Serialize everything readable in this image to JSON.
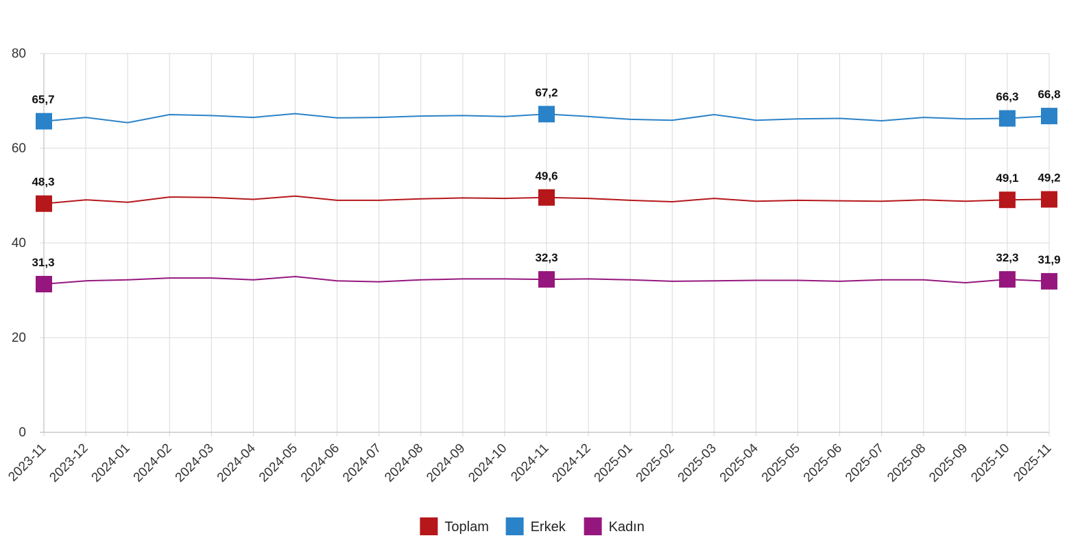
{
  "chart_data": {
    "type": "line",
    "title": "",
    "xlabel": "",
    "ylabel": "",
    "ylim": [
      0,
      80
    ],
    "y_ticks": [
      0,
      20,
      40,
      60,
      80
    ],
    "grid": true,
    "legend_position": "bottom-center",
    "categories": [
      "2023-11",
      "2023-12",
      "2024-01",
      "2024-02",
      "2024-03",
      "2024-04",
      "2024-05",
      "2024-06",
      "2024-07",
      "2024-08",
      "2024-09",
      "2024-10",
      "2024-11",
      "2024-12",
      "2025-01",
      "2025-02",
      "2025-03",
      "2025-04",
      "2025-05",
      "2025-06",
      "2025-07",
      "2025-08",
      "2025-09",
      "2025-10",
      "2025-11"
    ],
    "series": [
      {
        "name": "Toplam",
        "color": "#b5171b",
        "values": [
          48.3,
          49.1,
          48.6,
          49.7,
          49.6,
          49.2,
          49.9,
          49.0,
          49.0,
          49.3,
          49.5,
          49.4,
          49.6,
          49.4,
          49.0,
          48.7,
          49.4,
          48.8,
          49.0,
          48.9,
          48.8,
          49.1,
          48.8,
          49.1,
          49.2
        ],
        "labels": [
          {
            "index": 0,
            "text": "48,3"
          },
          {
            "index": 12,
            "text": "49,6"
          },
          {
            "index": 23,
            "text": "49,1"
          },
          {
            "index": 24,
            "text": "49,2"
          }
        ]
      },
      {
        "name": "Erkek",
        "color": "#2a82c8",
        "values": [
          65.7,
          66.5,
          65.4,
          67.1,
          66.9,
          66.5,
          67.3,
          66.4,
          66.5,
          66.8,
          66.9,
          66.7,
          67.2,
          66.7,
          66.1,
          65.9,
          67.1,
          65.9,
          66.2,
          66.3,
          65.8,
          66.5,
          66.2,
          66.3,
          66.8
        ],
        "labels": [
          {
            "index": 0,
            "text": "65,7"
          },
          {
            "index": 12,
            "text": "67,2"
          },
          {
            "index": 23,
            "text": "66,3"
          },
          {
            "index": 24,
            "text": "66,8"
          }
        ]
      },
      {
        "name": "Kadın",
        "color": "#95177e",
        "values": [
          31.3,
          32.0,
          32.2,
          32.6,
          32.6,
          32.2,
          32.9,
          32.0,
          31.8,
          32.2,
          32.4,
          32.4,
          32.3,
          32.4,
          32.2,
          31.9,
          32.0,
          32.1,
          32.1,
          31.9,
          32.2,
          32.2,
          31.6,
          32.3,
          31.9
        ],
        "labels": [
          {
            "index": 0,
            "text": "31,3"
          },
          {
            "index": 12,
            "text": "32,3"
          },
          {
            "index": 23,
            "text": "32,3"
          },
          {
            "index": 24,
            "text": "31,9"
          }
        ]
      }
    ]
  }
}
